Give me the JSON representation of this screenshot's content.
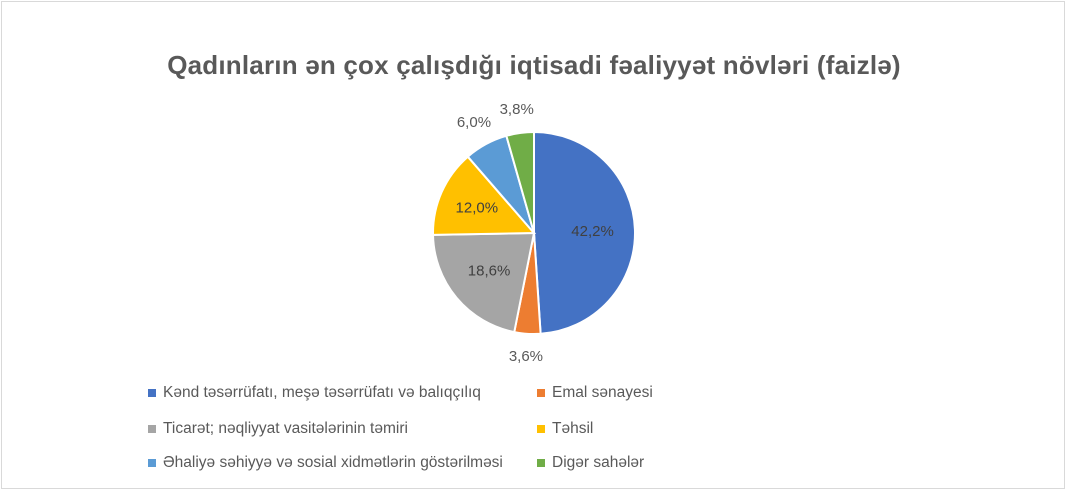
{
  "chart_data": {
    "type": "pie",
    "title": "Qadınların ən çox çalışdığı iqtisadi fəaliyyət növləri (faizlə)",
    "slices": [
      {
        "label": "Kənd təsərrüfatı, meşə təsərrüfatı və balıqçılıq",
        "value": 42.2,
        "value_label": "42,2%",
        "color": "#4472C4"
      },
      {
        "label": "Emal sənayesi",
        "value": 3.6,
        "value_label": "3,6%",
        "color": "#ED7D31"
      },
      {
        "label": "Ticarət; nəqliyyat vasitələrinin təmiri",
        "value": 18.6,
        "value_label": "18,6%",
        "color": "#A5A5A5"
      },
      {
        "label": "Təhsil",
        "value": 12.0,
        "value_label": "12,0%",
        "color": "#FFC000"
      },
      {
        "label": "Əhaliyə səhiyyə və sosial xidmətlərin göstərilməsi",
        "value": 6.0,
        "value_label": "6,0%",
        "color": "#5B9BD5"
      },
      {
        "label": "Digər sahələr",
        "value": 3.8,
        "value_label": "3,8%",
        "color": "#70AD47"
      }
    ],
    "legend_position": "bottom"
  }
}
